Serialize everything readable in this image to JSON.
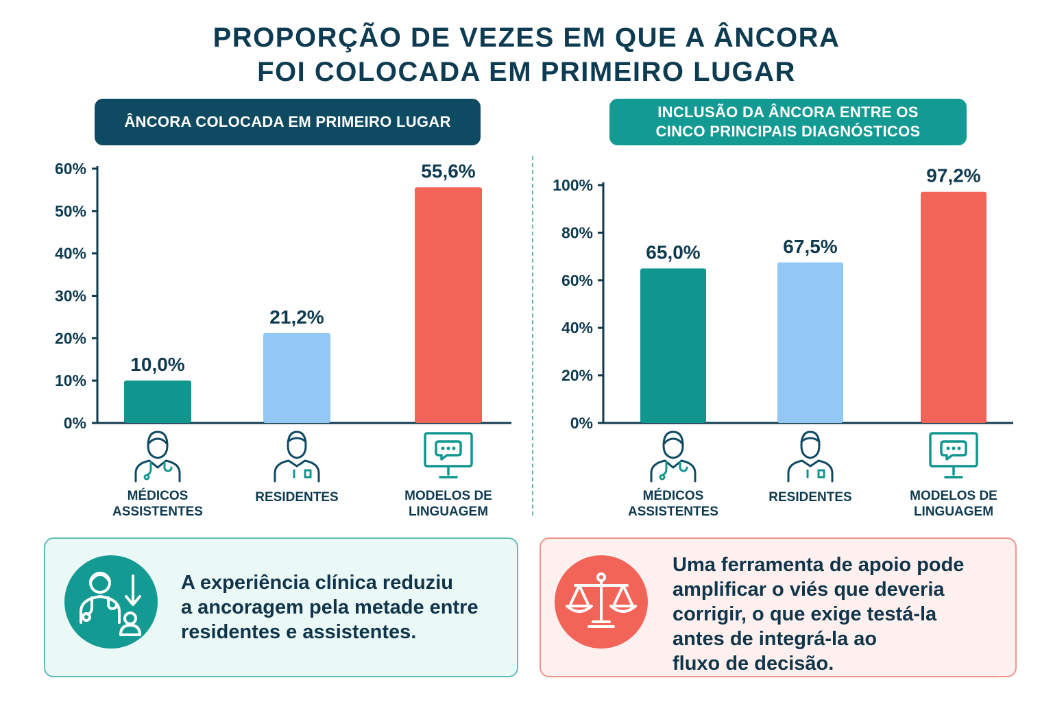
{
  "title": {
    "line1": "PROPORÇÃO DE VEZES EM QUE A ÂNCORA",
    "line2": "FOI COLOCADA EM PRIMEIRO LUGAR"
  },
  "colors": {
    "teal": "#11958f",
    "light_blue": "#92c8f3",
    "coral": "#f36458",
    "navy": "#0f4a63",
    "axis": "#0e3a4f"
  },
  "chart_data": [
    {
      "type": "bar",
      "title_lines": [
        "ÂNCORA COLOCADA EM PRIMEIRO LUGAR"
      ],
      "categories": [
        {
          "lines": [
            "MÉDICOS",
            "ASSISTENTES"
          ],
          "icon": "doctor-icon"
        },
        {
          "lines": [
            "RESIDENTES"
          ],
          "icon": "resident-icon"
        },
        {
          "lines": [
            "MODELOS DE",
            "LINGUAGEM"
          ],
          "icon": "monitor-chat-icon"
        }
      ],
      "values": [
        10.0,
        21.2,
        55.6
      ],
      "value_labels": [
        "10,0%",
        "21,2%",
        "55,6%"
      ],
      "ylim": [
        0,
        60
      ],
      "yticks": [
        "0%",
        "10%",
        "20%",
        "30%",
        "40%",
        "50%",
        "60%"
      ],
      "ytick_values": [
        0,
        10,
        20,
        30,
        40,
        50,
        60
      ],
      "grid": false
    },
    {
      "type": "bar",
      "title_lines": [
        "INCLUSÃO DA ÂNCORA ENTRE OS",
        "CINCO PRINCIPAIS DIAGNÓSTICOS"
      ],
      "categories": [
        {
          "lines": [
            "MÉDICOS",
            "ASSISTENTES"
          ],
          "icon": "doctor-icon"
        },
        {
          "lines": [
            "RESIDENTES"
          ],
          "icon": "resident-icon"
        },
        {
          "lines": [
            "MODELOS DE",
            "LINGUAGEM"
          ],
          "icon": "monitor-chat-icon"
        }
      ],
      "values": [
        65.0,
        67.5,
        97.2
      ],
      "value_labels": [
        "65,0%",
        "67,5%",
        "97,2%"
      ],
      "ylim": [
        0,
        100
      ],
      "yticks": [
        "0%",
        "20%",
        "40%",
        "60%",
        "80%",
        "100%"
      ],
      "ytick_values": [
        0,
        20,
        40,
        60,
        80,
        100
      ],
      "grid": false
    }
  ],
  "notes": [
    {
      "icon": "doctor-experience-icon",
      "lines": [
        "A experiência clínica reduziu",
        "a ancoragem pela metade entre",
        "residentes e assistentes."
      ]
    },
    {
      "icon": "balance-scale-icon",
      "lines": [
        "Uma ferramenta de apoio pode",
        "amplificar o viés que deveria",
        "corrigir, o que exige testá-la",
        "antes de integrá-la ao",
        "fluxo de decisão."
      ]
    }
  ]
}
